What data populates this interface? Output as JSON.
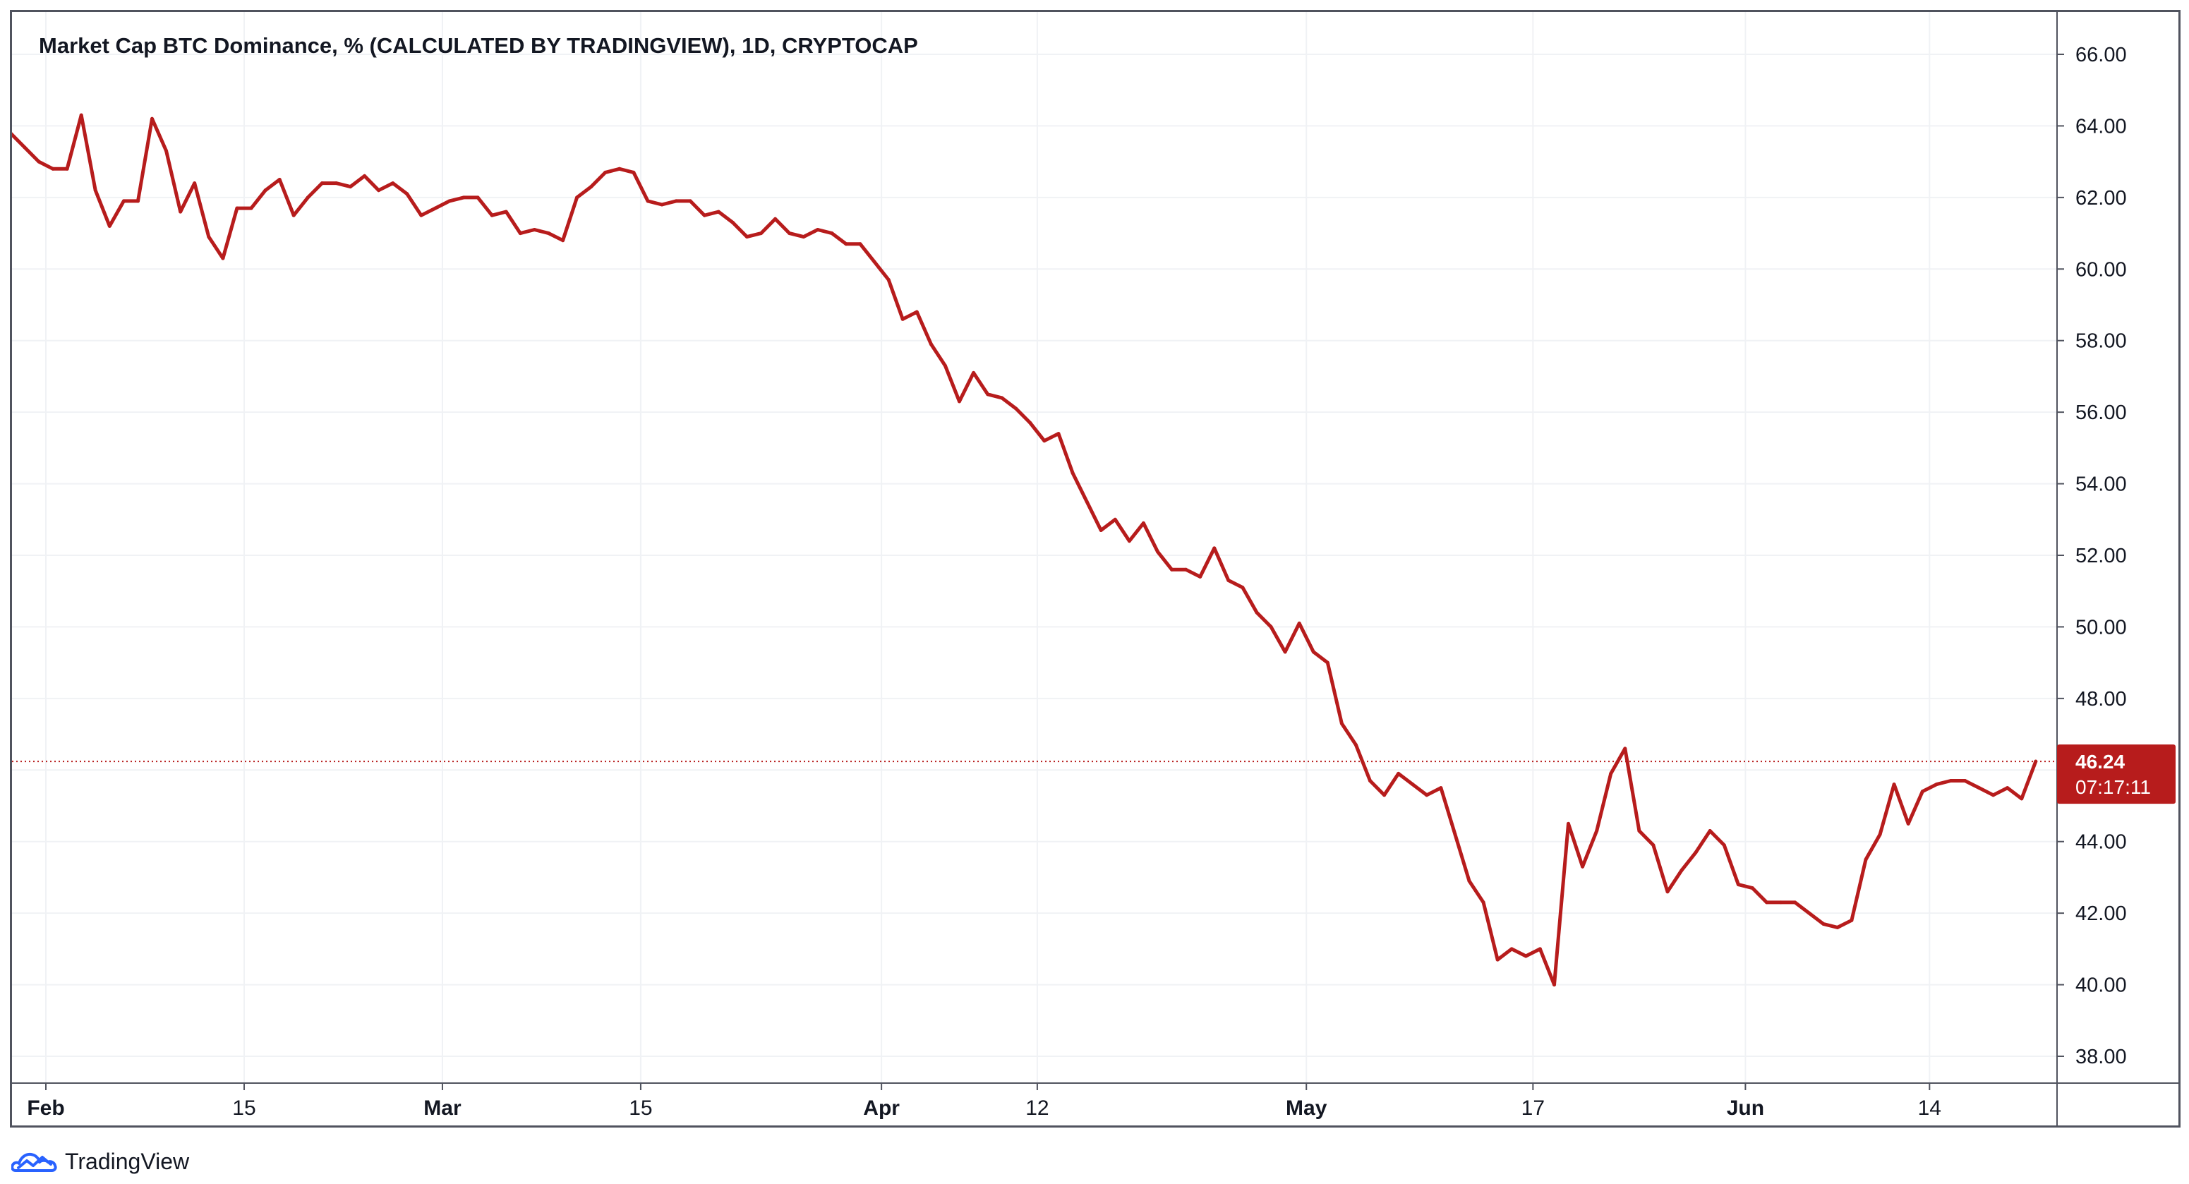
{
  "chart_data": {
    "type": "line",
    "title": "Market Cap BTC Dominance, % (CALCULATED BY TRADINGVIEW), 1D, CRYPTOCAP",
    "xlabel": "",
    "ylabel": "",
    "ylim": [
      37.0,
      67.0
    ],
    "y_ticks": [
      "66.00",
      "64.00",
      "62.00",
      "60.00",
      "58.00",
      "56.00",
      "54.00",
      "52.00",
      "50.00",
      "48.00",
      "46.00",
      "44.00",
      "42.00",
      "40.00",
      "38.00"
    ],
    "x_ticks": [
      {
        "label": "Feb",
        "day": 0,
        "bold": true
      },
      {
        "label": "15",
        "day": 14,
        "bold": false
      },
      {
        "label": "Mar",
        "day": 28,
        "bold": true
      },
      {
        "label": "15",
        "day": 42,
        "bold": false
      },
      {
        "label": "Apr",
        "day": 59,
        "bold": true
      },
      {
        "label": "12",
        "day": 70,
        "bold": false
      },
      {
        "label": "May",
        "day": 89,
        "bold": true
      },
      {
        "label": "17",
        "day": 105,
        "bold": false
      },
      {
        "label": "Jun",
        "day": 120,
        "bold": true
      },
      {
        "label": "14",
        "day": 133,
        "bold": false
      }
    ],
    "grid": true,
    "series": [
      {
        "color": "#b71c1c",
        "start_day": -2.5,
        "values": [
          63.8,
          63.4,
          63.0,
          62.8,
          62.8,
          64.3,
          62.2,
          61.2,
          61.9,
          61.9,
          64.2,
          63.3,
          61.6,
          62.4,
          60.9,
          60.3,
          61.7,
          61.7,
          62.2,
          62.5,
          61.5,
          62.0,
          62.4,
          62.4,
          62.3,
          62.6,
          62.2,
          62.4,
          62.1,
          61.5,
          61.7,
          61.9,
          62.0,
          62.0,
          61.5,
          61.6,
          61.0,
          61.1,
          61.0,
          60.8,
          62.0,
          62.3,
          62.7,
          62.8,
          62.7,
          61.9,
          61.8,
          61.9,
          61.9,
          61.5,
          61.6,
          61.3,
          60.9,
          61.0,
          61.4,
          61.0,
          60.9,
          61.1,
          61.0,
          60.7,
          60.7,
          60.2,
          59.7,
          58.6,
          58.8,
          57.9,
          57.3,
          56.3,
          57.1,
          56.5,
          56.4,
          56.1,
          55.7,
          55.2,
          55.4,
          54.3,
          53.5,
          52.7,
          53.0,
          52.4,
          52.9,
          52.1,
          51.6,
          51.6,
          51.4,
          52.2,
          51.3,
          51.1,
          50.4,
          50.0,
          49.3,
          50.1,
          49.3,
          49.0,
          47.3,
          46.7,
          45.7,
          45.3,
          45.9,
          45.6,
          45.3,
          45.5,
          44.2,
          42.9,
          42.3,
          40.7,
          41.0,
          40.8,
          41.0,
          40.0,
          44.5,
          43.3,
          44.3,
          45.9,
          46.6,
          44.3,
          43.9,
          42.6,
          43.2,
          43.7,
          44.3,
          43.9,
          42.8,
          42.7,
          42.3,
          42.3,
          42.3,
          42.0,
          41.7,
          41.6,
          41.8,
          43.5,
          44.2,
          45.6,
          44.5,
          45.4,
          45.6,
          45.7,
          45.7,
          45.5,
          45.3,
          45.5,
          45.2,
          46.24
        ]
      }
    ],
    "last_value_label": "46.24",
    "countdown_label": "07:17:11",
    "last_value": 46.24
  },
  "brand": {
    "name": "TradingView",
    "logo_icon": "tradingview-cloud-icon",
    "logo_color": "#2962ff"
  },
  "colors": {
    "line": "#b71c1c",
    "label_bg": "#b71c1c",
    "grid": "#f0f2f5",
    "axis": "#50535e",
    "text": "#131722"
  }
}
